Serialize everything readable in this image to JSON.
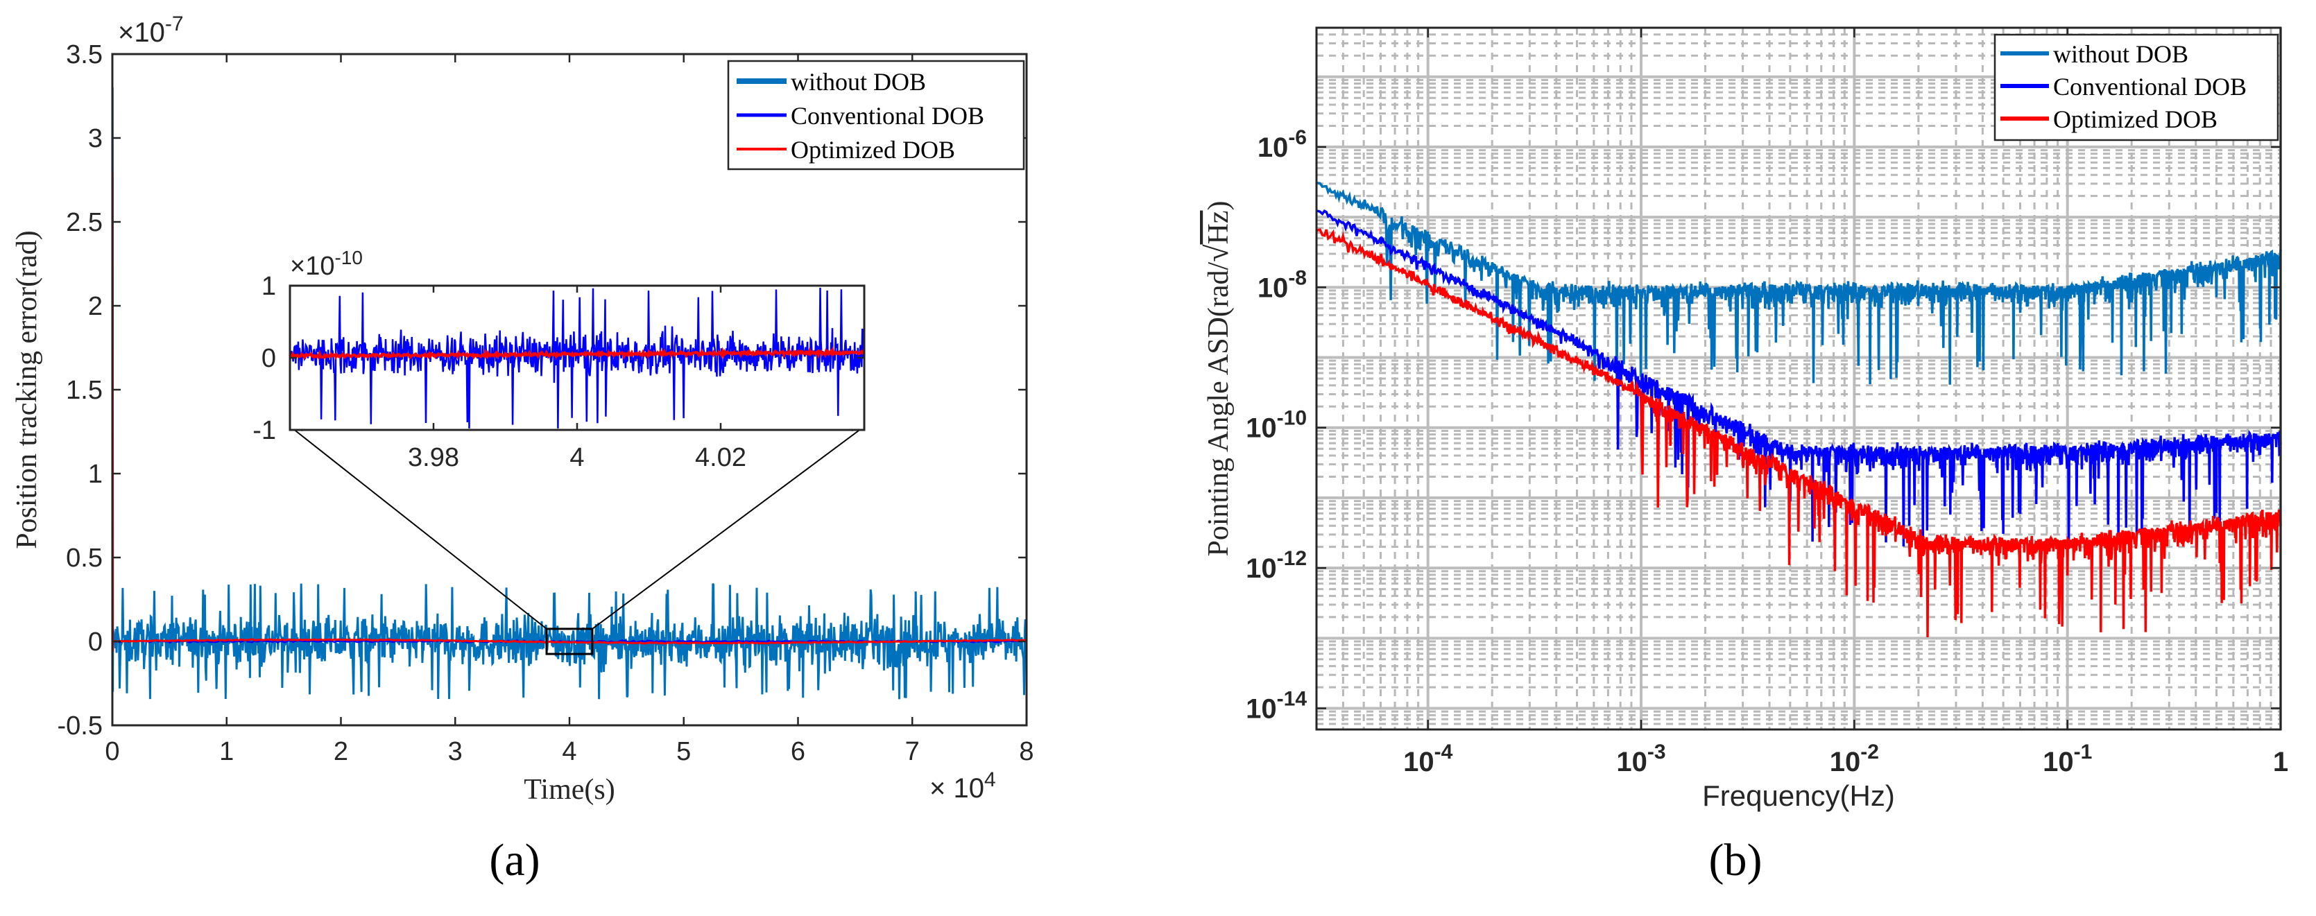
{
  "chart_data": [
    {
      "type": "line",
      "panel_label": "(a)",
      "xlabel": "Time(s)",
      "ylabel": "Position tracking error(rad)",
      "x_exponent_label": "× 10",
      "x_exponent": "4",
      "y_exponent_label": "×10",
      "y_exponent": "-7",
      "xlim": [
        0,
        8
      ],
      "ylim": [
        -0.5,
        3.5
      ],
      "x_ticks": [
        "0",
        "1",
        "2",
        "3",
        "4",
        "5",
        "6",
        "7",
        "8"
      ],
      "y_ticks": [
        "-0.5",
        "0",
        "0.5",
        "1",
        "1.5",
        "2",
        "2.5",
        "3",
        "3.5"
      ],
      "legend_position": "top-right",
      "series": [
        {
          "name": "without DOB",
          "color": "#0072BD",
          "noise_amplitude": 0.3,
          "initial_spike": 3.3,
          "baseline": 0
        },
        {
          "name": "Conventional DOB",
          "color": "#0000ff",
          "noise_amplitude": 0.01,
          "initial_spike": 3.0,
          "baseline": 0
        },
        {
          "name": "Optimized DOB",
          "color": "#ff0000",
          "noise_amplitude": 0.005,
          "initial_spike": 2.8,
          "baseline": 0
        }
      ],
      "inset": {
        "xlim": [
          3.96,
          4.04
        ],
        "ylim": [
          -1,
          1
        ],
        "x_ticks": [
          "3.98",
          "4",
          "4.02"
        ],
        "y_ticks": [
          "-1",
          "0",
          "1"
        ],
        "y_exponent_label": "×10",
        "y_exponent": "-10",
        "zoom_box_x": [
          3.8,
          4.2
        ],
        "zoom_box_y": [
          -0.05,
          0.05
        ],
        "series": [
          {
            "name": "Conventional DOB",
            "color": "#0000ff",
            "noise_amplitude": 0.9,
            "baseline": 0
          },
          {
            "name": "Optimized DOB",
            "color": "#ff0000",
            "noise_amplitude": 0.08,
            "baseline": 0
          }
        ]
      }
    },
    {
      "type": "line",
      "panel_label": "(b)",
      "xlabel": "Frequency(Hz)",
      "ylabel": "Pointing  Angle  ASD(rad/√Hz)",
      "ylabel_prefix": "Pointing  Angle  ASD(rad/",
      "ylabel_sqrt": "Hz",
      "ylabel_suffix": ")",
      "xscale": "log",
      "yscale": "log",
      "xlim": [
        3e-05,
        1
      ],
      "ylim": [
        5e-15,
        5e-05
      ],
      "x_ticks": [
        {
          "base": "10",
          "exp": "-4",
          "value": -4
        },
        {
          "base": "10",
          "exp": "-3",
          "value": -3
        },
        {
          "base": "10",
          "exp": "-2",
          "value": -2
        },
        {
          "base": "10",
          "exp": "-1",
          "value": -1
        },
        {
          "base": "10",
          "exp": "0",
          "value": 0,
          "plain": "1"
        }
      ],
      "y_ticks": [
        {
          "base": "10",
          "exp": "-14",
          "value": -14
        },
        {
          "base": "10",
          "exp": "-12",
          "value": -12
        },
        {
          "base": "10",
          "exp": "-10",
          "value": -10
        },
        {
          "base": "10",
          "exp": "-8",
          "value": -8
        },
        {
          "base": "10",
          "exp": "-6",
          "value": -6
        }
      ],
      "legend_position": "top-right",
      "series": [
        {
          "name": "without DOB",
          "color": "#0072BD",
          "low_freq_level": 3e-07,
          "flat_level": 1e-08,
          "high_freq_rise": 3e-08
        },
        {
          "name": "Conventional DOB",
          "color": "#0000ff",
          "low_freq_level": 1.3e-07,
          "flat_level": 5e-11,
          "high_freq_rise": 8e-11
        },
        {
          "name": "Optimized DOB",
          "color": "#ff0000",
          "low_freq_level": 7e-08,
          "flat_level": 2.5e-12,
          "high_freq_rise": 6e-12
        }
      ]
    }
  ]
}
